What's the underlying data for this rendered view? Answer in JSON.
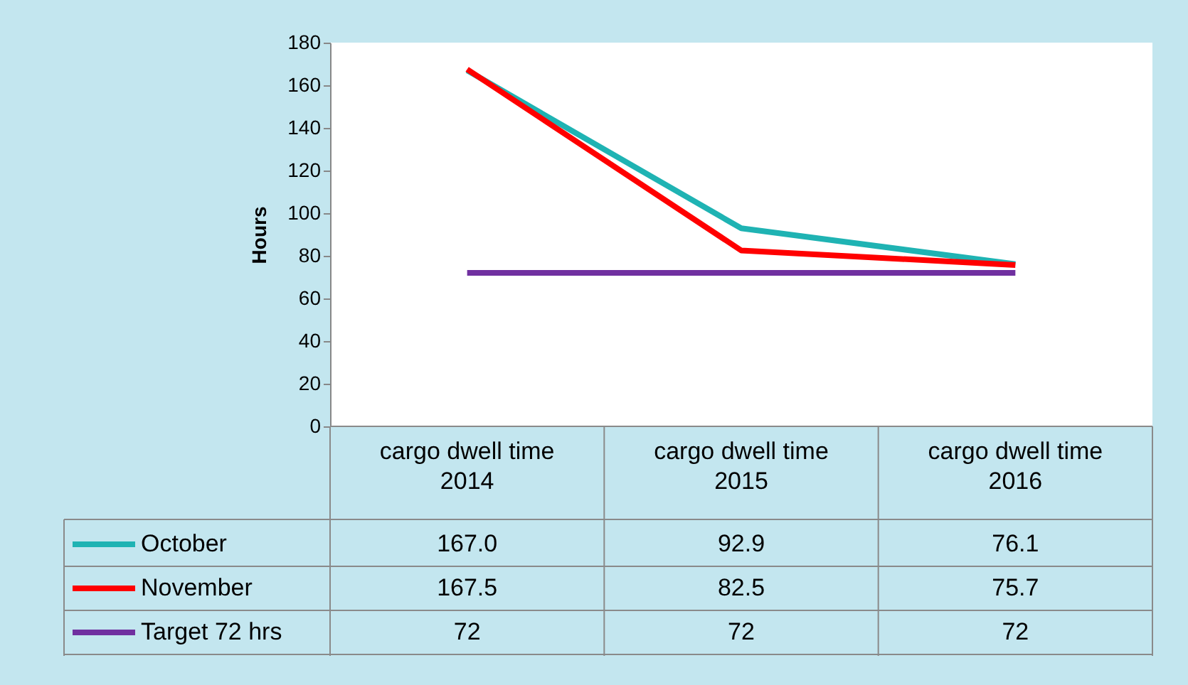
{
  "chart_data": {
    "type": "line",
    "ylabel": "Hours",
    "categories": [
      "cargo dwell time 2014",
      "cargo dwell time 2015",
      "cargo dwell time 2016"
    ],
    "series": [
      {
        "name": "October",
        "color": "#1fb3b3",
        "values": [
          167.0,
          92.9,
          76.1
        ],
        "value_labels": [
          "167.0",
          "92.9",
          "76.1"
        ]
      },
      {
        "name": "November",
        "color": "#ff0000",
        "values": [
          167.5,
          82.5,
          75.7
        ],
        "value_labels": [
          "167.5",
          "82.5",
          "75.7"
        ]
      },
      {
        "name": "Target 72 hrs",
        "color": "#7030a0",
        "values": [
          72,
          72,
          72
        ],
        "value_labels": [
          "72",
          "72",
          "72"
        ]
      }
    ],
    "ylim": [
      0,
      180
    ],
    "yticks": [
      0,
      20,
      40,
      60,
      80,
      100,
      120,
      140,
      160,
      180
    ],
    "grid": false,
    "legend": "bottom",
    "marker": "none",
    "line_style": "solid"
  }
}
